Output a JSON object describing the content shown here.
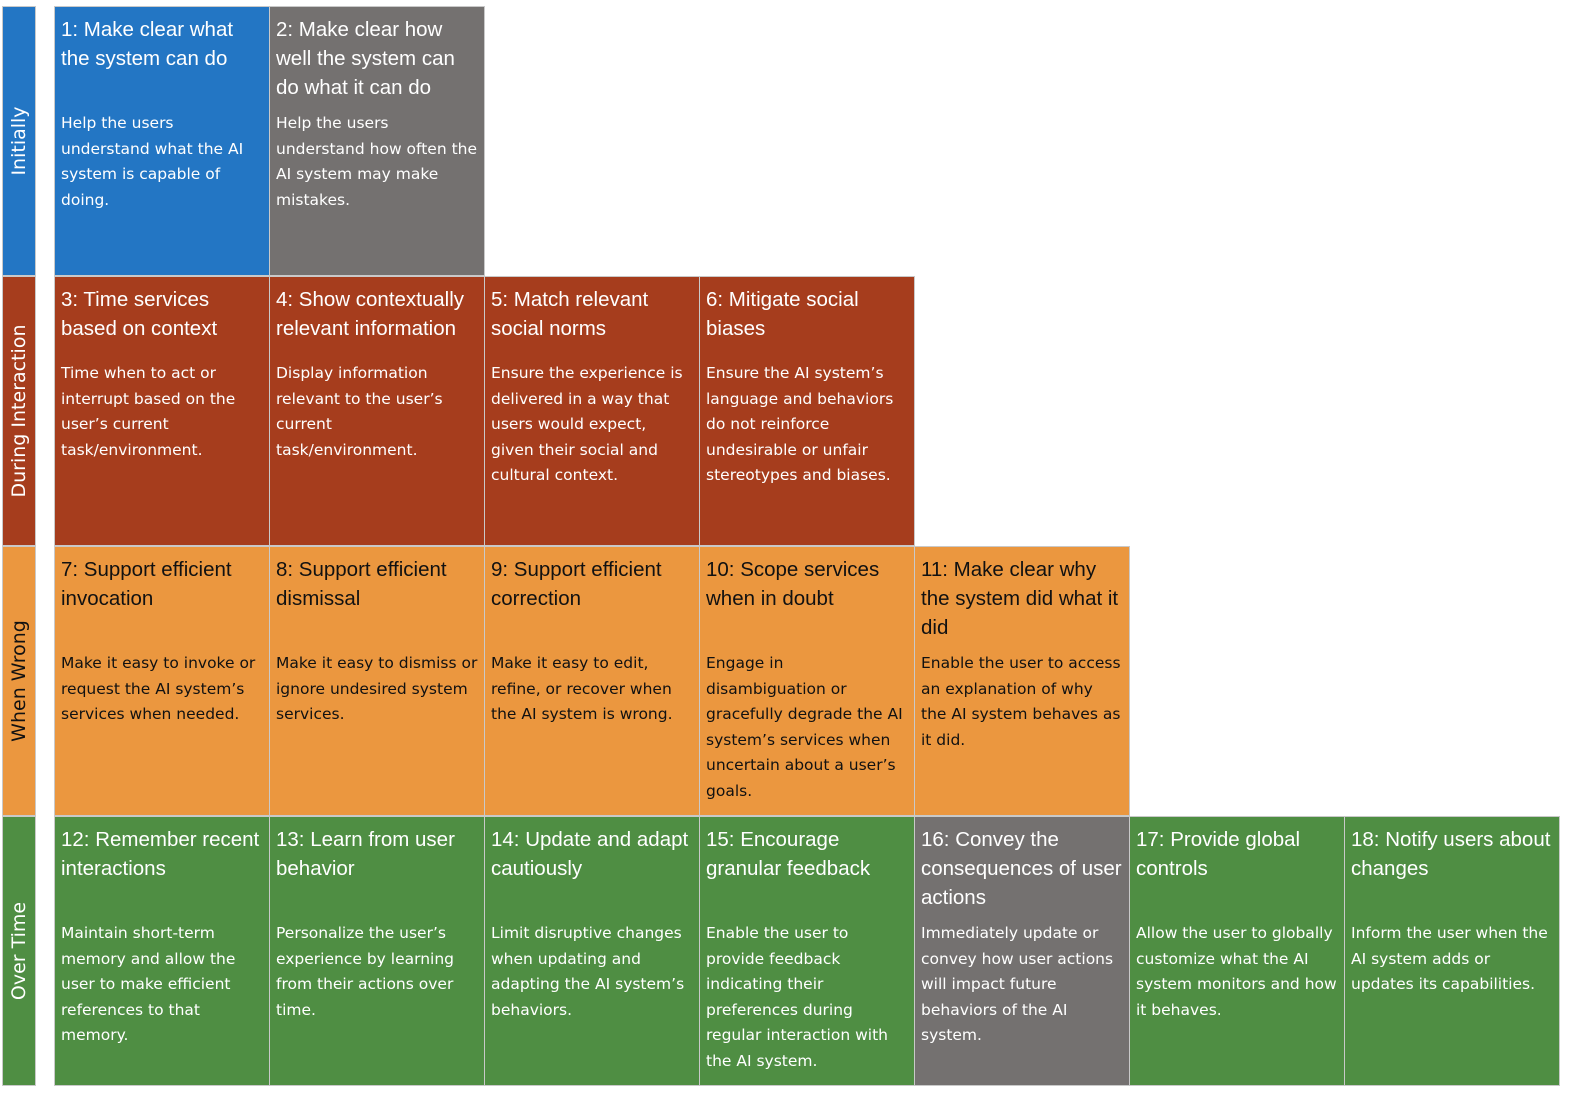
{
  "colors": {
    "initially": "#2376c4",
    "capability_gray": "#747170",
    "during_interaction": "#a63d1d",
    "when_wrong": "#eb973f",
    "over_time": "#4f8e43"
  },
  "rows": [
    {
      "label": "Initially"
    },
    {
      "label": "During Interaction"
    },
    {
      "label": "When Wrong"
    },
    {
      "label": "Over Time"
    }
  ],
  "cards": [
    {
      "title": "1: Make clear what the system can do",
      "description": "Help the users understand what the AI system is capable of doing."
    },
    {
      "title": "2: Make clear how well the system can do what it can do",
      "description": "Help the users understand how often the AI system may make mistakes."
    },
    {
      "title": "3: Time services based on context",
      "description": "Time when to act or interrupt based on the user’s current task/environment."
    },
    {
      "title": "4: Show contextually relevant information",
      "description": "Display information relevant to the user’s current task/environment."
    },
    {
      "title": "5: Match relevant social norms",
      "description": "Ensure the experience is delivered in a way that users would expect, given their social and cultural context."
    },
    {
      "title": "6: Mitigate social biases",
      "description": "Ensure the AI system’s language and behaviors do not reinforce undesirable or unfair stereotypes and biases."
    },
    {
      "title": "7: Support efficient invocation",
      "description": "Make it easy to invoke or request the AI system’s services when needed."
    },
    {
      "title": "8: Support efficient dismissal",
      "description": "Make it easy to dismiss or ignore undesired system services."
    },
    {
      "title": "9: Support efficient correction",
      "description": "Make it easy to edit, refine, or recover when the AI system is wrong."
    },
    {
      "title": "10: Scope services when in doubt",
      "description": "Engage in disambiguation or gracefully degrade the AI system’s services when uncertain about a user’s goals."
    },
    {
      "title": "11: Make clear why the system did what it did",
      "description": "Enable the user to access an explanation of why the AI system behaves as it did."
    },
    {
      "title": "12: Remember recent interactions",
      "description": "Maintain short-term memory and allow the user to make efficient references to that memory."
    },
    {
      "title": "13: Learn from user behavior",
      "description": "Personalize the user’s experience by learning from their actions over time."
    },
    {
      "title": "14: Update and adapt cautiously",
      "description": "Limit disruptive changes when updating and adapting the AI system’s behaviors."
    },
    {
      "title": "15: Encourage granular feedback",
      "description": "Enable the user to provide feedback indicating their preferences during regular interaction with the AI system."
    },
    {
      "title": "16: Convey the consequences of user actions",
      "description": "Immediately update or convey how user actions will impact future behaviors of the AI system."
    },
    {
      "title": "17: Provide global controls",
      "description": "Allow the user to globally customize what the AI system monitors and how it behaves."
    },
    {
      "title": "18: Notify users about changes",
      "description": "Inform the user when the AI system adds or updates its capabilities."
    }
  ]
}
